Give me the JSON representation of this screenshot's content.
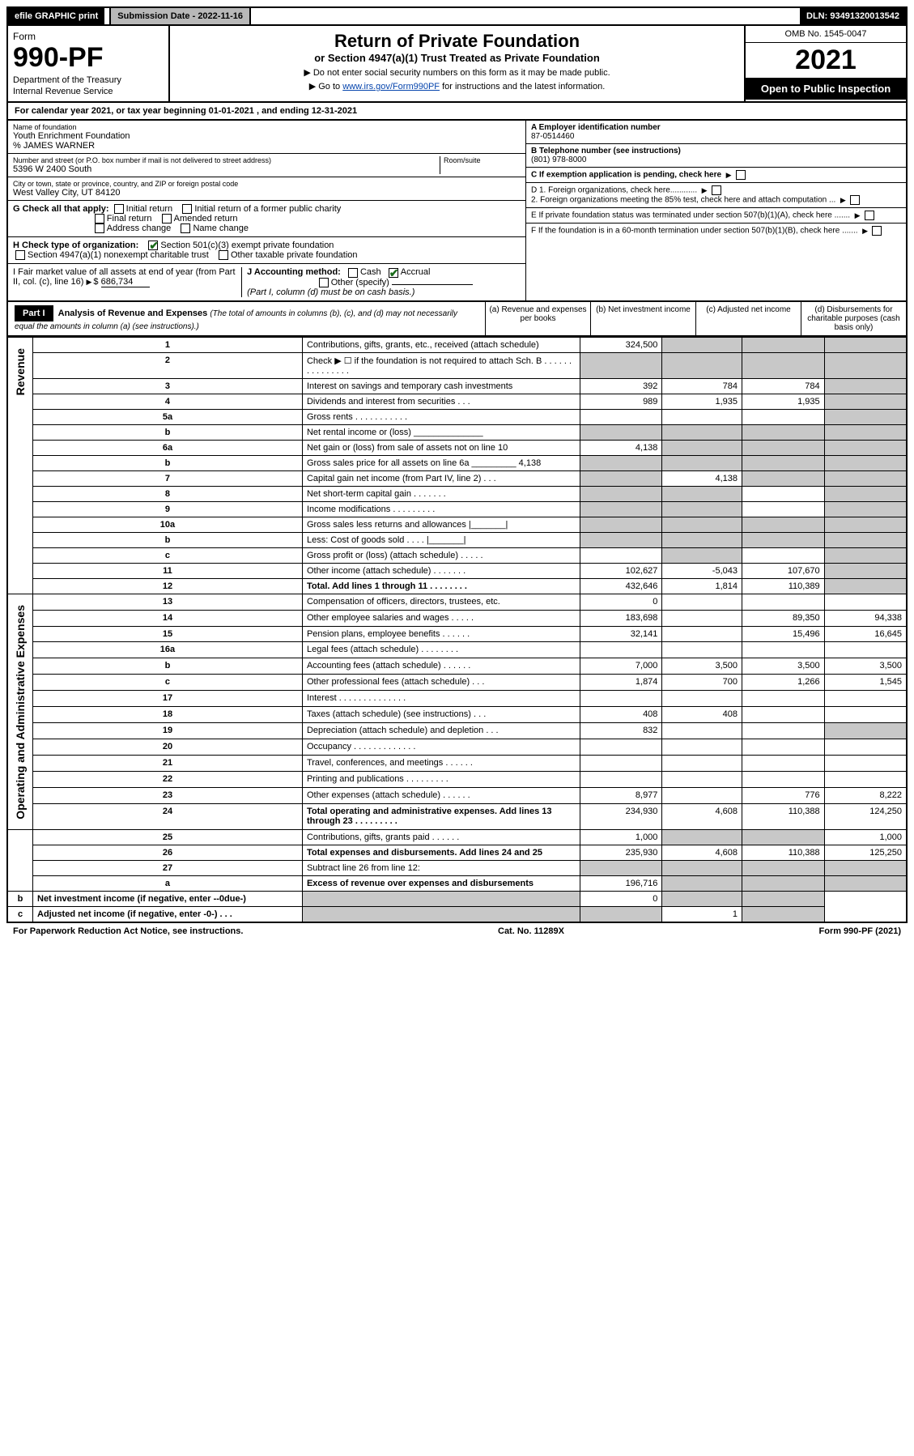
{
  "topbar": {
    "efile": "efile GRAPHIC print",
    "subdate_label": "Submission Date - 2022-11-16",
    "dln": "DLN: 93491320013542"
  },
  "header": {
    "form_label": "Form",
    "form_num": "990-PF",
    "dept": "Department of the Treasury",
    "irs": "Internal Revenue Service",
    "title": "Return of Private Foundation",
    "subtitle": "or Section 4947(a)(1) Trust Treated as Private Foundation",
    "note1": "▶ Do not enter social security numbers on this form as it may be made public.",
    "note2_pre": "▶ Go to ",
    "note2_link": "www.irs.gov/Form990PF",
    "note2_post": " for instructions and the latest information.",
    "omb": "OMB No. 1545-0047",
    "year": "2021",
    "open": "Open to Public Inspection"
  },
  "calyear": "For calendar year 2021, or tax year beginning 01-01-2021                            , and ending 12-31-2021",
  "info": {
    "name_lbl": "Name of foundation",
    "name": "Youth Enrichment Foundation",
    "care": "% JAMES WARNER",
    "addr_lbl": "Number and street (or P.O. box number if mail is not delivered to street address)",
    "addr": "5396 W 2400 South",
    "room_lbl": "Room/suite",
    "city_lbl": "City or town, state or province, country, and ZIP or foreign postal code",
    "city": "West Valley City, UT  84120",
    "a_lbl": "A Employer identification number",
    "a_val": "87-0514460",
    "b_lbl": "B Telephone number (see instructions)",
    "b_val": "(801) 978-8000",
    "c_lbl": "C If exemption application is pending, check here",
    "d1": "D 1. Foreign organizations, check here............",
    "d2": "2. Foreign organizations meeting the 85% test, check here and attach computation ...",
    "e": "E  If private foundation status was terminated under section 507(b)(1)(A), check here .......",
    "f": "F  If the foundation is in a 60-month termination under section 507(b)(1)(B), check here .......",
    "g_lbl": "G Check all that apply:",
    "g_opts": [
      "Initial return",
      "Initial return of a former public charity",
      "Final return",
      "Amended return",
      "Address change",
      "Name change"
    ],
    "h_lbl": "H Check type of organization:",
    "h1": "Section 501(c)(3) exempt private foundation",
    "h2": "Section 4947(a)(1) nonexempt charitable trust",
    "h3": "Other taxable private foundation",
    "i_lbl": "I Fair market value of all assets at end of year (from Part II, col. (c), line 16)",
    "i_val": "686,734",
    "j_lbl": "J Accounting method:",
    "j_cash": "Cash",
    "j_accr": "Accrual",
    "j_other": "Other (specify)",
    "j_note": "(Part I, column (d) must be on cash basis.)"
  },
  "part1": {
    "label": "Part I",
    "title": "Analysis of Revenue and Expenses",
    "title_note": "(The total of amounts in columns (b), (c), and (d) may not necessarily equal the amounts in column (a) (see instructions).)",
    "col_a": "(a)   Revenue and expenses per books",
    "col_b": "(b)   Net investment income",
    "col_c": "(c)   Adjusted net income",
    "col_d": "(d)   Disbursements for charitable purposes (cash basis only)"
  },
  "side_rev": "Revenue",
  "side_exp": "Operating and Administrative Expenses",
  "rows": [
    {
      "ln": "1",
      "desc": "Contributions, gifts, grants, etc., received (attach schedule)",
      "a": "324,500",
      "b": "",
      "c": "",
      "d": "",
      "bgrey": true,
      "cgrey": true,
      "dgrey": true
    },
    {
      "ln": "2",
      "desc": "Check ▶ ☐ if the foundation is not required to attach Sch. B   .  .  .  .  .  .  .  .  .  .  .  .  .  .  .",
      "a": "",
      "b": "",
      "c": "",
      "d": "",
      "agrey": true,
      "bgrey": true,
      "cgrey": true,
      "dgrey": true
    },
    {
      "ln": "3",
      "desc": "Interest on savings and temporary cash investments",
      "a": "392",
      "b": "784",
      "c": "784",
      "d": "",
      "dgrey": true
    },
    {
      "ln": "4",
      "desc": "Dividends and interest from securities   .   .   .",
      "a": "989",
      "b": "1,935",
      "c": "1,935",
      "d": "",
      "dgrey": true
    },
    {
      "ln": "5a",
      "desc": "Gross rents    .   .   .   .   .   .   .   .   .   .   .",
      "a": "",
      "b": "",
      "c": "",
      "d": "",
      "dgrey": true
    },
    {
      "ln": "b",
      "desc": "Net rental income or (loss) ______________",
      "a": "",
      "b": "",
      "c": "",
      "d": "",
      "agrey": true,
      "bgrey": true,
      "cgrey": true,
      "dgrey": true
    },
    {
      "ln": "6a",
      "desc": "Net gain or (loss) from sale of assets not on line 10",
      "a": "4,138",
      "b": "",
      "c": "",
      "d": "",
      "bgrey": true,
      "cgrey": true,
      "dgrey": true
    },
    {
      "ln": "b",
      "desc": "Gross sales price for all assets on line 6a _________ 4,138",
      "a": "",
      "b": "",
      "c": "",
      "d": "",
      "agrey": true,
      "bgrey": true,
      "cgrey": true,
      "dgrey": true
    },
    {
      "ln": "7",
      "desc": "Capital gain net income (from Part IV, line 2)   .   .   .",
      "a": "",
      "b": "4,138",
      "c": "",
      "d": "",
      "agrey": true,
      "cgrey": true,
      "dgrey": true
    },
    {
      "ln": "8",
      "desc": "Net short-term capital gain   .   .   .   .   .   .   .",
      "a": "",
      "b": "",
      "c": "",
      "d": "",
      "agrey": true,
      "bgrey": true,
      "dgrey": true
    },
    {
      "ln": "9",
      "desc": "Income modifications   .   .   .   .   .   .   .   .   .",
      "a": "",
      "b": "",
      "c": "",
      "d": "",
      "agrey": true,
      "bgrey": true,
      "dgrey": true
    },
    {
      "ln": "10a",
      "desc": "Gross sales less returns and allowances  |_______|",
      "a": "",
      "b": "",
      "c": "",
      "d": "",
      "agrey": true,
      "bgrey": true,
      "cgrey": true,
      "dgrey": true
    },
    {
      "ln": "b",
      "desc": "Less: Cost of goods sold    .   .   .   .   |_______|",
      "a": "",
      "b": "",
      "c": "",
      "d": "",
      "agrey": true,
      "bgrey": true,
      "cgrey": true,
      "dgrey": true
    },
    {
      "ln": "c",
      "desc": "Gross profit or (loss) (attach schedule)    .   .   .   .   .",
      "a": "",
      "b": "",
      "c": "",
      "d": "",
      "bgrey": true,
      "dgrey": true
    },
    {
      "ln": "11",
      "desc": "Other income (attach schedule)    .   .   .   .   .   .   .",
      "a": "102,627",
      "b": "-5,043",
      "c": "107,670",
      "d": "",
      "dgrey": true
    },
    {
      "ln": "12",
      "desc": "Total. Add lines 1 through 11   .   .   .   .   .   .   .   .",
      "a": "432,646",
      "b": "1,814",
      "c": "110,389",
      "d": "",
      "bold": true,
      "dgrey": true
    },
    {
      "ln": "13",
      "desc": "Compensation of officers, directors, trustees, etc.",
      "a": "0",
      "b": "",
      "c": "",
      "d": ""
    },
    {
      "ln": "14",
      "desc": "Other employee salaries and wages    .   .   .   .   .",
      "a": "183,698",
      "b": "",
      "c": "89,350",
      "d": "94,338"
    },
    {
      "ln": "15",
      "desc": "Pension plans, employee benefits   .   .   .   .   .   .",
      "a": "32,141",
      "b": "",
      "c": "15,496",
      "d": "16,645"
    },
    {
      "ln": "16a",
      "desc": "Legal fees (attach schedule)  .   .   .   .   .   .   .   .",
      "a": "",
      "b": "",
      "c": "",
      "d": ""
    },
    {
      "ln": "b",
      "desc": "Accounting fees (attach schedule)  .   .   .   .   .   .",
      "a": "7,000",
      "b": "3,500",
      "c": "3,500",
      "d": "3,500"
    },
    {
      "ln": "c",
      "desc": "Other professional fees (attach schedule)    .   .   .",
      "a": "1,874",
      "b": "700",
      "c": "1,266",
      "d": "1,545"
    },
    {
      "ln": "17",
      "desc": "Interest .   .   .   .   .   .   .   .   .   .   .   .   .   .",
      "a": "",
      "b": "",
      "c": "",
      "d": ""
    },
    {
      "ln": "18",
      "desc": "Taxes (attach schedule) (see instructions)    .   .   .",
      "a": "408",
      "b": "408",
      "c": "",
      "d": ""
    },
    {
      "ln": "19",
      "desc": "Depreciation (attach schedule) and depletion    .   .   .",
      "a": "832",
      "b": "",
      "c": "",
      "d": "",
      "dgrey": true
    },
    {
      "ln": "20",
      "desc": "Occupancy   .   .   .   .   .   .   .   .   .   .   .   .   .",
      "a": "",
      "b": "",
      "c": "",
      "d": ""
    },
    {
      "ln": "21",
      "desc": "Travel, conferences, and meetings   .   .   .   .   .   .",
      "a": "",
      "b": "",
      "c": "",
      "d": ""
    },
    {
      "ln": "22",
      "desc": "Printing and publications   .   .   .   .   .   .   .   .   .",
      "a": "",
      "b": "",
      "c": "",
      "d": ""
    },
    {
      "ln": "23",
      "desc": "Other expenses (attach schedule)   .   .   .   .   .   .",
      "a": "8,977",
      "b": "",
      "c": "776",
      "d": "8,222"
    },
    {
      "ln": "24",
      "desc": "Total operating and administrative expenses. Add lines 13 through 23   .   .   .   .   .   .   .   .   .",
      "a": "234,930",
      "b": "4,608",
      "c": "110,388",
      "d": "124,250",
      "bold": true
    },
    {
      "ln": "25",
      "desc": "Contributions, gifts, grants paid     .   .   .   .   .   .",
      "a": "1,000",
      "b": "",
      "c": "",
      "d": "1,000",
      "bgrey": true,
      "cgrey": true
    },
    {
      "ln": "26",
      "desc": "Total expenses and disbursements. Add lines 24 and 25",
      "a": "235,930",
      "b": "4,608",
      "c": "110,388",
      "d": "125,250",
      "bold": true
    },
    {
      "ln": "27",
      "desc": "Subtract line 26 from line 12:",
      "a": "",
      "b": "",
      "c": "",
      "d": "",
      "agrey": true,
      "bgrey": true,
      "cgrey": true,
      "dgrey": true
    },
    {
      "ln": "a",
      "desc": "Excess of revenue over expenses and disbursements",
      "a": "196,716",
      "b": "",
      "c": "",
      "d": "",
      "bold": true,
      "bgrey": true,
      "cgrey": true,
      "dgrey": true
    },
    {
      "ln": "b",
      "desc": "Net investment income (if negative, enter --0due-)",
      "a": "",
      "b": "0",
      "c": "",
      "d": "",
      "bold": true,
      "agrey": true,
      "cgrey": true,
      "dgrey": true
    },
    {
      "ln": "c",
      "desc": "Adjusted net income (if negative, enter -0-)   .   .   .",
      "a": "",
      "b": "",
      "c": "1",
      "d": "",
      "bold": true,
      "agrey": true,
      "bgrey": true,
      "dgrey": true
    }
  ],
  "footer": {
    "left": "For Paperwork Reduction Act Notice, see instructions.",
    "mid": "Cat. No. 11289X",
    "right": "Form 990-PF (2021)"
  },
  "colors": {
    "grey": "#c8c8c8",
    "link": "#0645ad",
    "check": "#1a6b1a"
  }
}
